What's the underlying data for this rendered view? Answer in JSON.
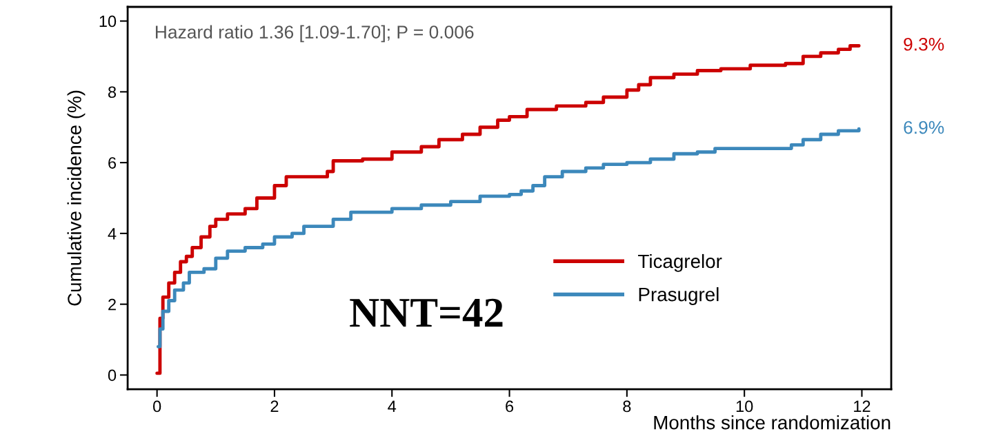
{
  "chart_data": {
    "type": "step",
    "xlabel": "Months since randomization",
    "ylabel": "Cumulative incidence (%)",
    "xlim": [
      -0.5,
      12.5
    ],
    "ylim": [
      -0.4,
      10.4
    ],
    "xticks": [
      0,
      2,
      4,
      6,
      8,
      10,
      12
    ],
    "yticks": [
      0,
      2,
      4,
      6,
      8,
      10
    ],
    "grid": false,
    "legend": "bottom right",
    "series": [
      {
        "name": "Ticagrelor",
        "color": "#cc0000",
        "x": [
          0,
          0.05,
          0.1,
          0.2,
          0.3,
          0.4,
          0.5,
          0.6,
          0.75,
          0.9,
          1.0,
          1.2,
          1.5,
          1.7,
          2.0,
          2.2,
          2.7,
          2.9,
          3.0,
          3.5,
          4.0,
          4.5,
          4.8,
          5.2,
          5.5,
          5.8,
          6.0,
          6.3,
          6.8,
          7.3,
          7.6,
          8.0,
          8.2,
          8.4,
          8.8,
          9.2,
          9.6,
          10.1,
          10.7,
          11.0,
          11.3,
          11.6,
          11.8,
          11.95
        ],
        "values": [
          0.05,
          1.6,
          2.2,
          2.6,
          2.9,
          3.2,
          3.35,
          3.6,
          3.9,
          4.2,
          4.4,
          4.55,
          4.7,
          5.0,
          5.35,
          5.6,
          5.6,
          5.75,
          6.05,
          6.1,
          6.3,
          6.45,
          6.65,
          6.8,
          7.0,
          7.2,
          7.3,
          7.5,
          7.6,
          7.7,
          7.85,
          8.05,
          8.2,
          8.4,
          8.5,
          8.6,
          8.65,
          8.75,
          8.8,
          9.0,
          9.1,
          9.2,
          9.3,
          9.3
        ]
      },
      {
        "name": "Prasugrel",
        "color": "#3c88bb",
        "x": [
          0.02,
          0.05,
          0.1,
          0.2,
          0.3,
          0.45,
          0.55,
          0.8,
          1.0,
          1.2,
          1.5,
          1.8,
          2.0,
          2.3,
          2.5,
          3.0,
          3.3,
          4.0,
          4.5,
          5.0,
          5.5,
          6.0,
          6.2,
          6.4,
          6.6,
          6.9,
          7.3,
          7.6,
          8.0,
          8.4,
          8.8,
          9.2,
          9.5,
          10.4,
          10.8,
          11.0,
          11.3,
          11.6,
          11.95
        ],
        "values": [
          0.8,
          1.3,
          1.8,
          2.1,
          2.4,
          2.6,
          2.9,
          3.0,
          3.3,
          3.5,
          3.6,
          3.7,
          3.9,
          4.0,
          4.2,
          4.4,
          4.6,
          4.7,
          4.8,
          4.9,
          5.05,
          5.1,
          5.2,
          5.35,
          5.6,
          5.75,
          5.85,
          5.95,
          6.0,
          6.1,
          6.25,
          6.3,
          6.4,
          6.4,
          6.5,
          6.65,
          6.8,
          6.9,
          6.95
        ]
      }
    ],
    "annotations": [
      "Hazard ratio 1.36 [1.09-1.70]; P = 0.006",
      "NNT=42",
      {
        "text": "9.3%",
        "x": 11.95,
        "y": 9.3
      },
      {
        "text": "6.9%",
        "x": 11.95,
        "y": 6.95
      }
    ]
  }
}
